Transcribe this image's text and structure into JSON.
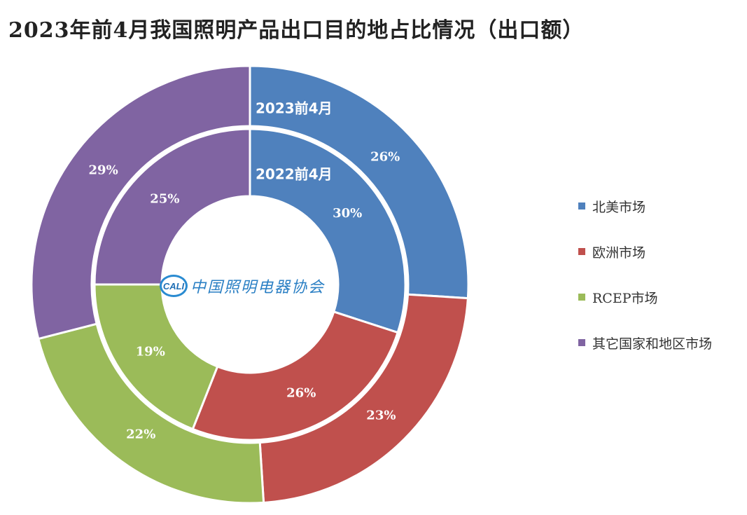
{
  "title": "2023年前4月我国照明产品出口目的地占比情况（出口额）",
  "logo": {
    "mark": "CALI",
    "text": "中国照明电器协会"
  },
  "chart_data": {
    "type": "donut",
    "title": "2023年前4月我国照明产品出口目的地占比情况（出口额）",
    "categories": [
      "北美市场",
      "欧洲市场",
      "RCEP市场",
      "其它国家和地区市场"
    ],
    "colors": [
      "#4f81bd",
      "#c0504d",
      "#9bbb59",
      "#8064a2"
    ],
    "series": [
      {
        "name": "2023前4月",
        "ring": "outer",
        "values": [
          26,
          23,
          22,
          29
        ],
        "labels": [
          "26%",
          "23%",
          "22%",
          "29%"
        ]
      },
      {
        "name": "2022前4月",
        "ring": "inner",
        "values": [
          30,
          26,
          19,
          25
        ],
        "labels": [
          "30%",
          "26%",
          "19%",
          "25%"
        ]
      }
    ],
    "legend_position": "right"
  }
}
